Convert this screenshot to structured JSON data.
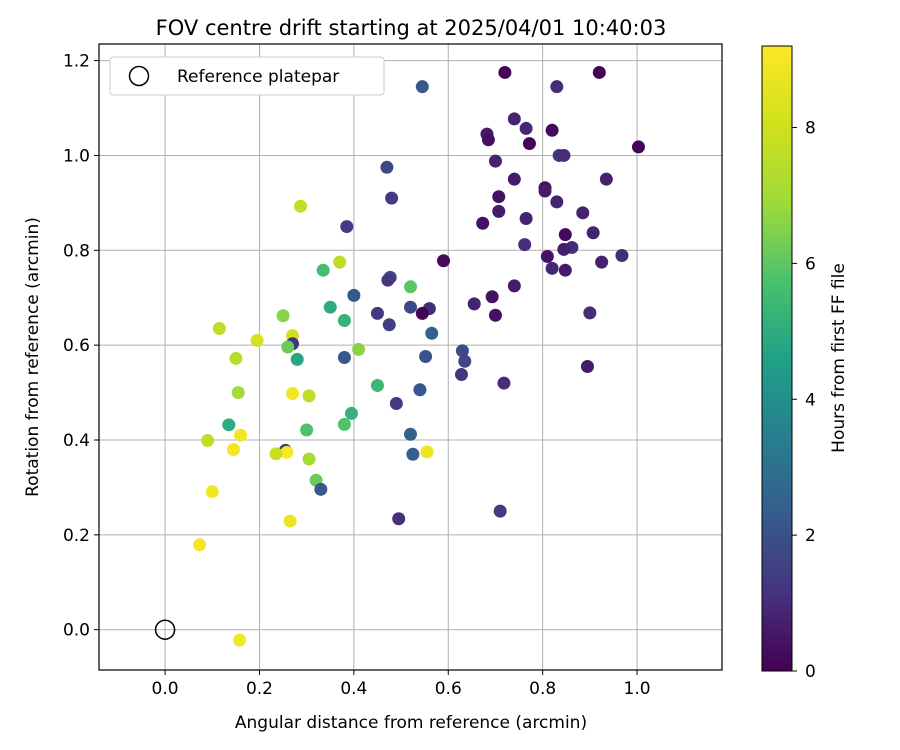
{
  "chart_data": {
    "type": "scatter",
    "title": "FOV centre drift starting at 2025/04/01 10:40:03",
    "xlabel": "Angular distance from reference (arcmin)",
    "ylabel": "Rotation from reference (arcmin)",
    "xlim": [
      -0.14,
      1.18
    ],
    "ylim": [
      -0.085,
      1.235
    ],
    "xticks": [
      0.0,
      0.2,
      0.4,
      0.6,
      0.8,
      1.0
    ],
    "xtick_labels": [
      "0.0",
      "0.2",
      "0.4",
      "0.6",
      "0.8",
      "1.0"
    ],
    "yticks": [
      0.0,
      0.2,
      0.4,
      0.6,
      0.8,
      1.0,
      1.2
    ],
    "ytick_labels": [
      "0.0",
      "0.2",
      "0.4",
      "0.6",
      "0.8",
      "1.0",
      "1.2"
    ],
    "grid": true,
    "legend": {
      "location": "upper-left",
      "entries": [
        {
          "label": "Reference platepar",
          "marker": "open-circle"
        }
      ]
    },
    "reference_point": {
      "x": 0.0,
      "y": 0.0
    },
    "colorbar": {
      "label": "Hours from first FF file",
      "colormap": "viridis",
      "range": [
        0,
        9.2
      ],
      "ticks": [
        0,
        2,
        4,
        6,
        8
      ],
      "tick_labels": [
        "0",
        "2",
        "4",
        "6",
        "8"
      ]
    },
    "points": [
      {
        "x": 0.72,
        "y": 1.175,
        "c": 0.1
      },
      {
        "x": 0.92,
        "y": 1.175,
        "c": 0.1
      },
      {
        "x": 0.545,
        "y": 1.145,
        "c": 2.2
      },
      {
        "x": 0.83,
        "y": 1.145,
        "c": 1.0
      },
      {
        "x": 0.74,
        "y": 1.077,
        "c": 0.8
      },
      {
        "x": 0.765,
        "y": 1.057,
        "c": 0.9
      },
      {
        "x": 0.82,
        "y": 1.053,
        "c": 0.2
      },
      {
        "x": 0.682,
        "y": 1.045,
        "c": 0.6
      },
      {
        "x": 0.685,
        "y": 1.033,
        "c": 0.3
      },
      {
        "x": 0.772,
        "y": 1.025,
        "c": 0.1
      },
      {
        "x": 1.003,
        "y": 1.018,
        "c": 0.1
      },
      {
        "x": 0.835,
        "y": 1.0,
        "c": 1.2
      },
      {
        "x": 0.845,
        "y": 1.0,
        "c": 1.0
      },
      {
        "x": 0.7,
        "y": 0.988,
        "c": 0.8
      },
      {
        "x": 0.47,
        "y": 0.975,
        "c": 1.8
      },
      {
        "x": 0.74,
        "y": 0.95,
        "c": 0.6
      },
      {
        "x": 0.935,
        "y": 0.95,
        "c": 0.8
      },
      {
        "x": 0.805,
        "y": 0.932,
        "c": 0.4
      },
      {
        "x": 0.805,
        "y": 0.925,
        "c": 0.6
      },
      {
        "x": 0.707,
        "y": 0.913,
        "c": 0.4
      },
      {
        "x": 0.48,
        "y": 0.91,
        "c": 1.4
      },
      {
        "x": 0.83,
        "y": 0.902,
        "c": 0.8
      },
      {
        "x": 0.287,
        "y": 0.893,
        "c": 7.7
      },
      {
        "x": 0.707,
        "y": 0.882,
        "c": 0.6
      },
      {
        "x": 0.885,
        "y": 0.879,
        "c": 0.8
      },
      {
        "x": 0.765,
        "y": 0.867,
        "c": 0.8
      },
      {
        "x": 0.673,
        "y": 0.857,
        "c": 0.4
      },
      {
        "x": 0.385,
        "y": 0.85,
        "c": 1.4
      },
      {
        "x": 0.907,
        "y": 0.837,
        "c": 0.8
      },
      {
        "x": 0.848,
        "y": 0.833,
        "c": 0.2
      },
      {
        "x": 0.762,
        "y": 0.812,
        "c": 1.0
      },
      {
        "x": 0.862,
        "y": 0.806,
        "c": 1.0
      },
      {
        "x": 0.845,
        "y": 0.802,
        "c": 0.7
      },
      {
        "x": 0.968,
        "y": 0.789,
        "c": 1.0
      },
      {
        "x": 0.81,
        "y": 0.787,
        "c": 0.4
      },
      {
        "x": 0.59,
        "y": 0.778,
        "c": 0.2
      },
      {
        "x": 0.925,
        "y": 0.775,
        "c": 0.8
      },
      {
        "x": 0.37,
        "y": 0.775,
        "c": 7.6
      },
      {
        "x": 0.82,
        "y": 0.762,
        "c": 0.9
      },
      {
        "x": 0.848,
        "y": 0.758,
        "c": 0.6
      },
      {
        "x": 0.335,
        "y": 0.758,
        "c": 5.6
      },
      {
        "x": 0.477,
        "y": 0.743,
        "c": 1.7
      },
      {
        "x": 0.472,
        "y": 0.737,
        "c": 1.3
      },
      {
        "x": 0.74,
        "y": 0.725,
        "c": 0.6
      },
      {
        "x": 0.52,
        "y": 0.723,
        "c": 6.0
      },
      {
        "x": 0.4,
        "y": 0.705,
        "c": 2.2
      },
      {
        "x": 0.693,
        "y": 0.702,
        "c": 0.4
      },
      {
        "x": 0.655,
        "y": 0.687,
        "c": 0.8
      },
      {
        "x": 0.35,
        "y": 0.68,
        "c": 5.0
      },
      {
        "x": 0.52,
        "y": 0.68,
        "c": 1.8
      },
      {
        "x": 0.56,
        "y": 0.677,
        "c": 1.0
      },
      {
        "x": 0.545,
        "y": 0.667,
        "c": 0.1
      },
      {
        "x": 0.45,
        "y": 0.667,
        "c": 1.4
      },
      {
        "x": 0.7,
        "y": 0.663,
        "c": 0.4
      },
      {
        "x": 0.9,
        "y": 0.668,
        "c": 1.0
      },
      {
        "x": 0.25,
        "y": 0.662,
        "c": 6.6
      },
      {
        "x": 0.38,
        "y": 0.652,
        "c": 5.2
      },
      {
        "x": 0.475,
        "y": 0.643,
        "c": 1.5
      },
      {
        "x": 0.115,
        "y": 0.635,
        "c": 7.6
      },
      {
        "x": 0.565,
        "y": 0.625,
        "c": 2.4
      },
      {
        "x": 0.27,
        "y": 0.62,
        "c": 8.0
      },
      {
        "x": 0.195,
        "y": 0.61,
        "c": 8.2
      },
      {
        "x": 0.27,
        "y": 0.603,
        "c": 1.2
      },
      {
        "x": 0.26,
        "y": 0.596,
        "c": 6.2
      },
      {
        "x": 0.41,
        "y": 0.591,
        "c": 6.6
      },
      {
        "x": 0.63,
        "y": 0.588,
        "c": 1.8
      },
      {
        "x": 0.38,
        "y": 0.574,
        "c": 2.2
      },
      {
        "x": 0.552,
        "y": 0.576,
        "c": 2.0
      },
      {
        "x": 0.15,
        "y": 0.572,
        "c": 7.4
      },
      {
        "x": 0.28,
        "y": 0.57,
        "c": 4.8
      },
      {
        "x": 0.635,
        "y": 0.566,
        "c": 1.7
      },
      {
        "x": 0.895,
        "y": 0.555,
        "c": 0.6
      },
      {
        "x": 0.628,
        "y": 0.538,
        "c": 1.3
      },
      {
        "x": 0.718,
        "y": 0.52,
        "c": 1.0
      },
      {
        "x": 0.45,
        "y": 0.515,
        "c": 5.4
      },
      {
        "x": 0.54,
        "y": 0.506,
        "c": 2.2
      },
      {
        "x": 0.155,
        "y": 0.5,
        "c": 7.0
      },
      {
        "x": 0.27,
        "y": 0.498,
        "c": 9.0
      },
      {
        "x": 0.305,
        "y": 0.493,
        "c": 7.6
      },
      {
        "x": 0.49,
        "y": 0.477,
        "c": 1.4
      },
      {
        "x": 0.395,
        "y": 0.456,
        "c": 5.2
      },
      {
        "x": 0.135,
        "y": 0.432,
        "c": 5.0
      },
      {
        "x": 0.38,
        "y": 0.433,
        "c": 5.8
      },
      {
        "x": 0.3,
        "y": 0.421,
        "c": 5.8
      },
      {
        "x": 0.52,
        "y": 0.412,
        "c": 2.4
      },
      {
        "x": 0.16,
        "y": 0.41,
        "c": 9.0
      },
      {
        "x": 0.09,
        "y": 0.399,
        "c": 7.6
      },
      {
        "x": 0.145,
        "y": 0.38,
        "c": 9.0
      },
      {
        "x": 0.255,
        "y": 0.378,
        "c": 1.2
      },
      {
        "x": 0.555,
        "y": 0.375,
        "c": 8.8
      },
      {
        "x": 0.258,
        "y": 0.374,
        "c": 9.1
      },
      {
        "x": 0.235,
        "y": 0.371,
        "c": 7.8
      },
      {
        "x": 0.525,
        "y": 0.37,
        "c": 2.4
      },
      {
        "x": 0.305,
        "y": 0.36,
        "c": 7.0
      },
      {
        "x": 0.32,
        "y": 0.315,
        "c": 6.2
      },
      {
        "x": 0.33,
        "y": 0.296,
        "c": 2.2
      },
      {
        "x": 0.1,
        "y": 0.291,
        "c": 9.0
      },
      {
        "x": 0.71,
        "y": 0.25,
        "c": 1.4
      },
      {
        "x": 0.495,
        "y": 0.234,
        "c": 1.1
      },
      {
        "x": 0.265,
        "y": 0.229,
        "c": 8.8
      },
      {
        "x": 0.073,
        "y": 0.179,
        "c": 9.0
      },
      {
        "x": 0.158,
        "y": -0.022,
        "c": 9.0
      }
    ]
  }
}
